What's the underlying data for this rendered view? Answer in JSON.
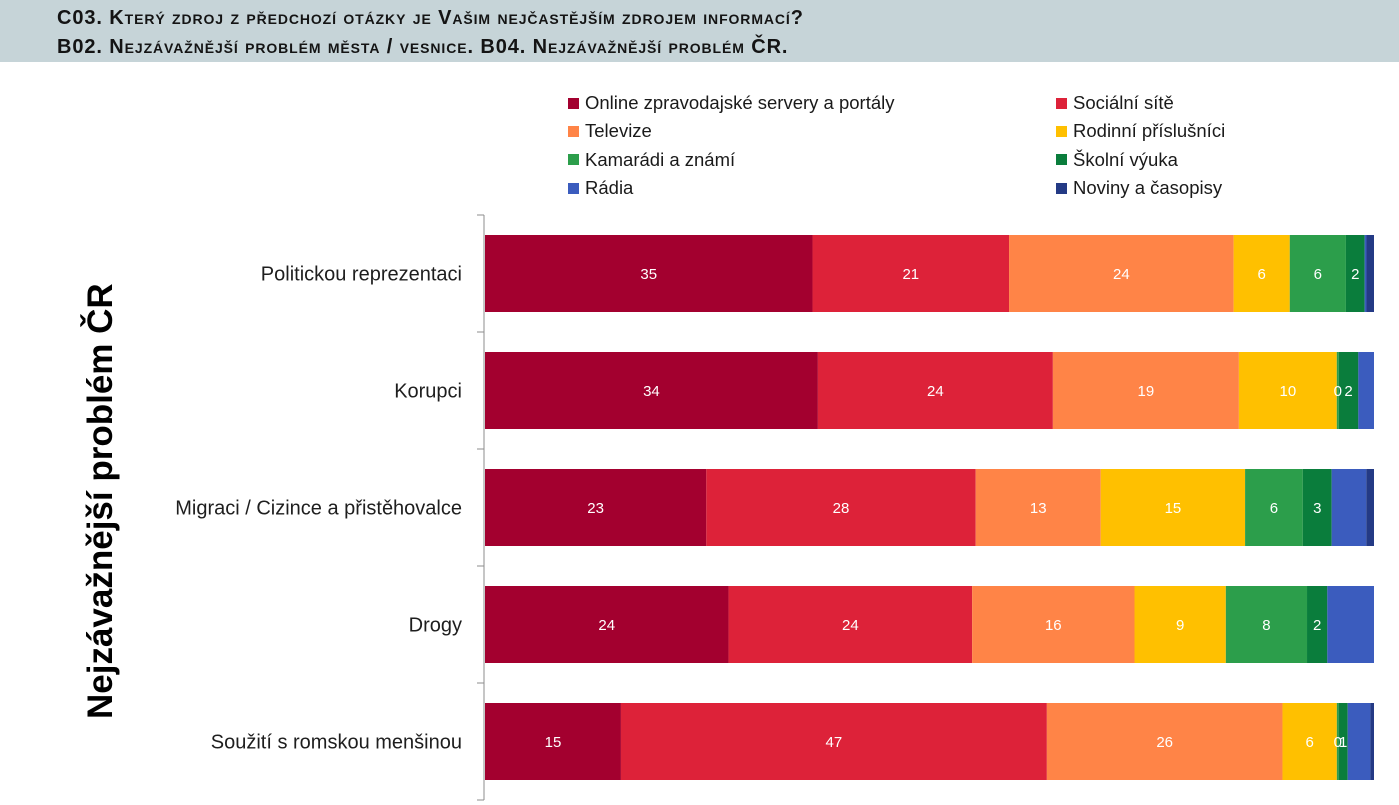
{
  "header": {
    "line1": "C03. Který zdroj z předchozí otázky je Vašim nejčastějším zdrojem informací?",
    "line2": "B02. Nejzávažnější problém města / vesnice. B04. Nejzávažnější problém ČR."
  },
  "chart_data": {
    "type": "bar",
    "horizontal": true,
    "stacked_percent": true,
    "title": "",
    "xlabel": "",
    "ylabel": "Nejzávažnější problém ČR",
    "legend_position": "top",
    "categories": [
      "Politickou reprezentaci",
      "Korupci",
      "Migraci / Cizince a přistěhovalce",
      "Drogy",
      "Soužití s romskou menšinou"
    ],
    "series": [
      {
        "name": "Online zpravodajské servery a portály",
        "color": "#a3002f",
        "values": [
          35,
          34,
          23,
          24,
          15
        ],
        "labels": [
          "35",
          "34",
          "23",
          "24",
          "15"
        ]
      },
      {
        "name": "Sociální sítě",
        "color": "#dd2239",
        "values": [
          21,
          24,
          28,
          24,
          47
        ],
        "labels": [
          "21",
          "24",
          "28",
          "24",
          "47"
        ]
      },
      {
        "name": "Televize",
        "color": "#ff8447",
        "values": [
          24,
          19,
          13,
          16,
          26
        ],
        "labels": [
          "24",
          "19",
          "13",
          "16",
          "26"
        ]
      },
      {
        "name": "Rodinní příslušníci",
        "color": "#ffc000",
        "values": [
          6,
          10,
          15,
          9,
          6
        ],
        "labels": [
          "6",
          "10",
          "15",
          "9",
          "6"
        ]
      },
      {
        "name": "Kamarádi a známí",
        "color": "#2c9e4b",
        "values": [
          6,
          0.2,
          6,
          8,
          0.2
        ],
        "labels": [
          "6",
          "0",
          "6",
          "8",
          "0"
        ]
      },
      {
        "name": "Školní výuka",
        "color": "#0a7d3c",
        "values": [
          2,
          2,
          3,
          2,
          1
        ],
        "labels": [
          "2",
          "2",
          "3",
          "2",
          "1"
        ]
      },
      {
        "name": "Rádia",
        "color": "#3b5cbe",
        "values": [
          0.2,
          1.6,
          3.6,
          4.6,
          2.5
        ],
        "labels": [
          "",
          "",
          "",
          "",
          ""
        ]
      },
      {
        "name": "Noviny a časopisy",
        "color": "#243a85",
        "values": [
          0.8,
          0,
          0.8,
          0,
          0.4
        ],
        "labels": [
          "",
          "",
          "",
          "",
          ""
        ]
      }
    ]
  }
}
